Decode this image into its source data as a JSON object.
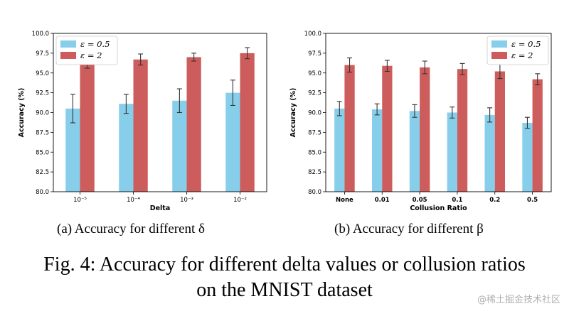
{
  "colors": {
    "eps05": "#87ceeb",
    "eps2": "#cd5c5c",
    "errbar": "#333333"
  },
  "chart_data": [
    {
      "type": "bar",
      "xlabel": "Delta",
      "ylabel": "Accuracy (%)",
      "ylim": [
        80.0,
        100.0
      ],
      "yticks": [
        "80.0",
        "82.5",
        "85.0",
        "87.5",
        "90.0",
        "92.5",
        "95.0",
        "97.5",
        "100.0"
      ],
      "categories": [
        "10⁻⁵",
        "10⁻⁴",
        "10⁻³",
        "10⁻²"
      ],
      "legend_position": "top-left",
      "series": [
        {
          "name": "ε = 0.5",
          "values": [
            90.5,
            91.1,
            91.5,
            92.5
          ],
          "errors": [
            1.8,
            1.2,
            1.5,
            1.6
          ]
        },
        {
          "name": "ε = 2",
          "values": [
            96.3,
            96.7,
            97.0,
            97.5
          ],
          "errors": [
            0.7,
            0.7,
            0.5,
            0.7
          ]
        }
      ]
    },
    {
      "type": "bar",
      "xlabel": "Collusion Ratio",
      "ylabel": "Accuracy (%)",
      "ylim": [
        80.0,
        100.0
      ],
      "yticks": [
        "80.0",
        "82.5",
        "85.0",
        "87.5",
        "90.0",
        "92.5",
        "95.0",
        "97.5",
        "100.0"
      ],
      "categories": [
        "None",
        "0.01",
        "0.05",
        "0.1",
        "0.2",
        "0.5"
      ],
      "legend_position": "top-right",
      "series": [
        {
          "name": "ε = 0.5",
          "values": [
            90.5,
            90.4,
            90.2,
            90.0,
            89.7,
            88.7
          ],
          "errors": [
            0.9,
            0.7,
            0.8,
            0.7,
            0.9,
            0.7
          ]
        },
        {
          "name": "ε = 2",
          "values": [
            96.0,
            95.9,
            95.7,
            95.5,
            95.2,
            94.2
          ],
          "errors": [
            0.9,
            0.7,
            0.8,
            0.7,
            0.9,
            0.7
          ]
        }
      ]
    }
  ],
  "captions": {
    "subcap_a": "(a) Accuracy for different δ",
    "subcap_b": "(b) Accuracy for different β",
    "figure_line1": "Fig. 4: Accuracy for different delta values or collusion ratios",
    "figure_line2": "on the MNIST dataset"
  },
  "watermark": "@稀土掘金技术社区"
}
